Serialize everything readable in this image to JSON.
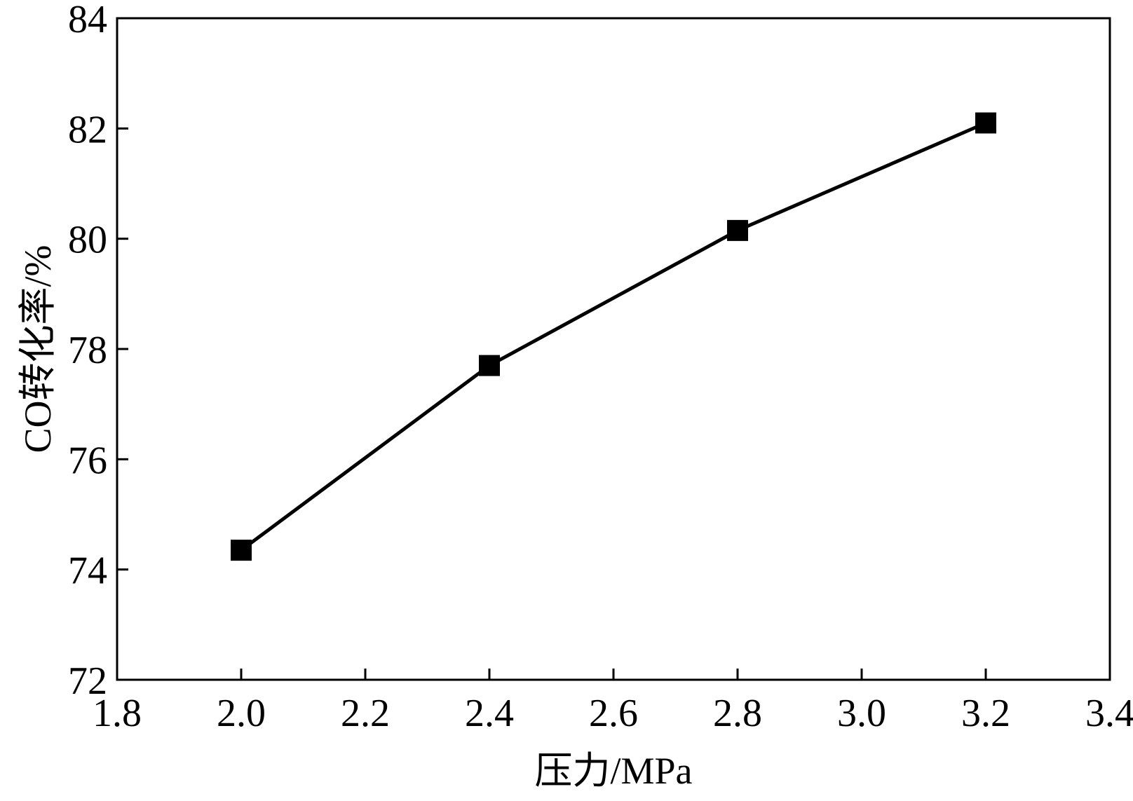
{
  "chart_data": {
    "type": "line",
    "title": "",
    "xlabel": "压力/MPa",
    "ylabel": "CO转化率/%",
    "xlim": [
      1.8,
      3.4
    ],
    "ylim": [
      72,
      84
    ],
    "x_ticks": [
      "1.8",
      "2.0",
      "2.2",
      "2.4",
      "2.6",
      "2.8",
      "3.0",
      "3.2",
      "3.4"
    ],
    "y_ticks": [
      "72",
      "74",
      "76",
      "78",
      "80",
      "82",
      "84"
    ],
    "grid": false,
    "legend": "none",
    "marker": "square",
    "line_color": "#000000",
    "series": [
      {
        "x": [
          2.0,
          2.4,
          2.8,
          3.2
        ],
        "y": [
          74.35,
          77.7,
          80.15,
          82.1
        ]
      }
    ]
  }
}
